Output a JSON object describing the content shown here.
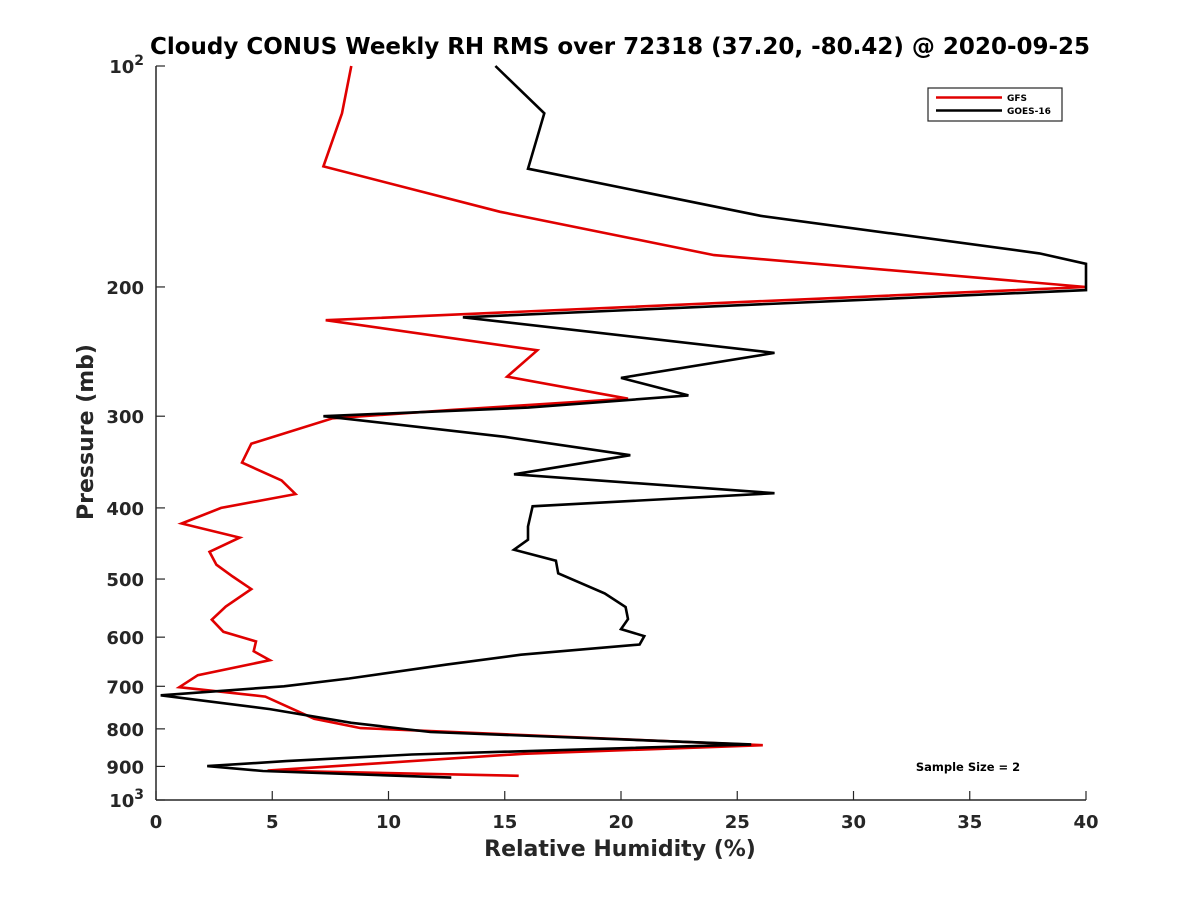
{
  "chart_data": {
    "type": "line",
    "title": "Cloudy CONUS Weekly RH RMS over 72318 (37.20, -80.42) @ 2020-09-25",
    "xlabel": "Relative Humidity (%)",
    "ylabel": "Pressure (mb)",
    "xlim": [
      0,
      40
    ],
    "ylim": [
      100,
      1000
    ],
    "yscale": "log",
    "y_reversed": true,
    "grid": false,
    "x_ticks": [
      "0",
      "5",
      "10",
      "15",
      "20",
      "25",
      "30",
      "35",
      "40"
    ],
    "y_ticks": [
      {
        "value": 100,
        "base": "10",
        "exp": "2"
      },
      {
        "value": 200,
        "label": "200"
      },
      {
        "value": 300,
        "label": "300"
      },
      {
        "value": 400,
        "label": "400"
      },
      {
        "value": 500,
        "label": "500"
      },
      {
        "value": 600,
        "label": "600"
      },
      {
        "value": 700,
        "label": "700"
      },
      {
        "value": 800,
        "label": "800"
      },
      {
        "value": 900,
        "label": "900"
      },
      {
        "value": 1000,
        "base": "10",
        "exp": "3"
      }
    ],
    "legend_position": "top-right",
    "annotation": "Sample Size = 2",
    "series": [
      {
        "name": "GFS",
        "color": "#e00000",
        "points": [
          [
            8.4,
            100
          ],
          [
            8.0,
            116
          ],
          [
            7.2,
            137
          ],
          [
            14.8,
            158
          ],
          [
            24.0,
            181
          ],
          [
            40,
            200
          ],
          [
            7.3,
            222
          ],
          [
            16.4,
            244
          ],
          [
            15.1,
            265
          ],
          [
            20.3,
            284
          ],
          [
            12.8,
            294
          ],
          [
            7.6,
            302
          ],
          [
            4.1,
            327
          ],
          [
            3.7,
            347
          ],
          [
            5.4,
            367
          ],
          [
            6.0,
            383
          ],
          [
            2.8,
            400
          ],
          [
            1.1,
            420
          ],
          [
            3.6,
            439
          ],
          [
            2.3,
            459
          ],
          [
            2.6,
            478
          ],
          [
            3.3,
            496
          ],
          [
            4.1,
            516
          ],
          [
            3.0,
            545
          ],
          [
            2.4,
            568
          ],
          [
            2.9,
            590
          ],
          [
            4.3,
            608
          ],
          [
            4.2,
            627
          ],
          [
            4.9,
            645
          ],
          [
            1.8,
            676
          ],
          [
            1.0,
            702
          ],
          [
            4.7,
            723
          ],
          [
            6.8,
            775
          ],
          [
            8.8,
            798
          ],
          [
            26.1,
            842
          ],
          [
            15.8,
            865
          ],
          [
            9.8,
            890
          ],
          [
            4.8,
            912
          ],
          [
            15.6,
            927
          ]
        ]
      },
      {
        "name": "GOES-16",
        "color": "#000000",
        "points": [
          [
            14.6,
            100
          ],
          [
            16.7,
            116
          ],
          [
            16.0,
            138
          ],
          [
            26.0,
            160
          ],
          [
            38.0,
            180
          ],
          [
            40,
            186
          ],
          [
            40,
            202
          ],
          [
            13.2,
            220
          ],
          [
            26.6,
            246
          ],
          [
            20.0,
            266
          ],
          [
            22.9,
            281
          ],
          [
            16.0,
            292
          ],
          [
            7.2,
            300
          ],
          [
            15.0,
            320
          ],
          [
            20.4,
            339
          ],
          [
            15.4,
            360
          ],
          [
            26.6,
            382
          ],
          [
            16.2,
            398
          ],
          [
            16.0,
            424
          ],
          [
            16.0,
            442
          ],
          [
            15.4,
            456
          ],
          [
            17.2,
            472
          ],
          [
            17.3,
            491
          ],
          [
            19.3,
            523
          ],
          [
            20.2,
            546
          ],
          [
            20.3,
            567
          ],
          [
            20.0,
            585
          ],
          [
            21.0,
            598
          ],
          [
            20.8,
            614
          ],
          [
            15.7,
            634
          ],
          [
            12.5,
            654
          ],
          [
            8.3,
            683
          ],
          [
            5.5,
            700
          ],
          [
            0.2,
            720
          ],
          [
            4.9,
            752
          ],
          [
            8.4,
            785
          ],
          [
            11.8,
            808
          ],
          [
            25.6,
            840
          ],
          [
            11.0,
            867
          ],
          [
            5.6,
            885
          ],
          [
            2.2,
            899
          ],
          [
            4.6,
            913
          ],
          [
            12.7,
            932
          ]
        ]
      }
    ]
  }
}
